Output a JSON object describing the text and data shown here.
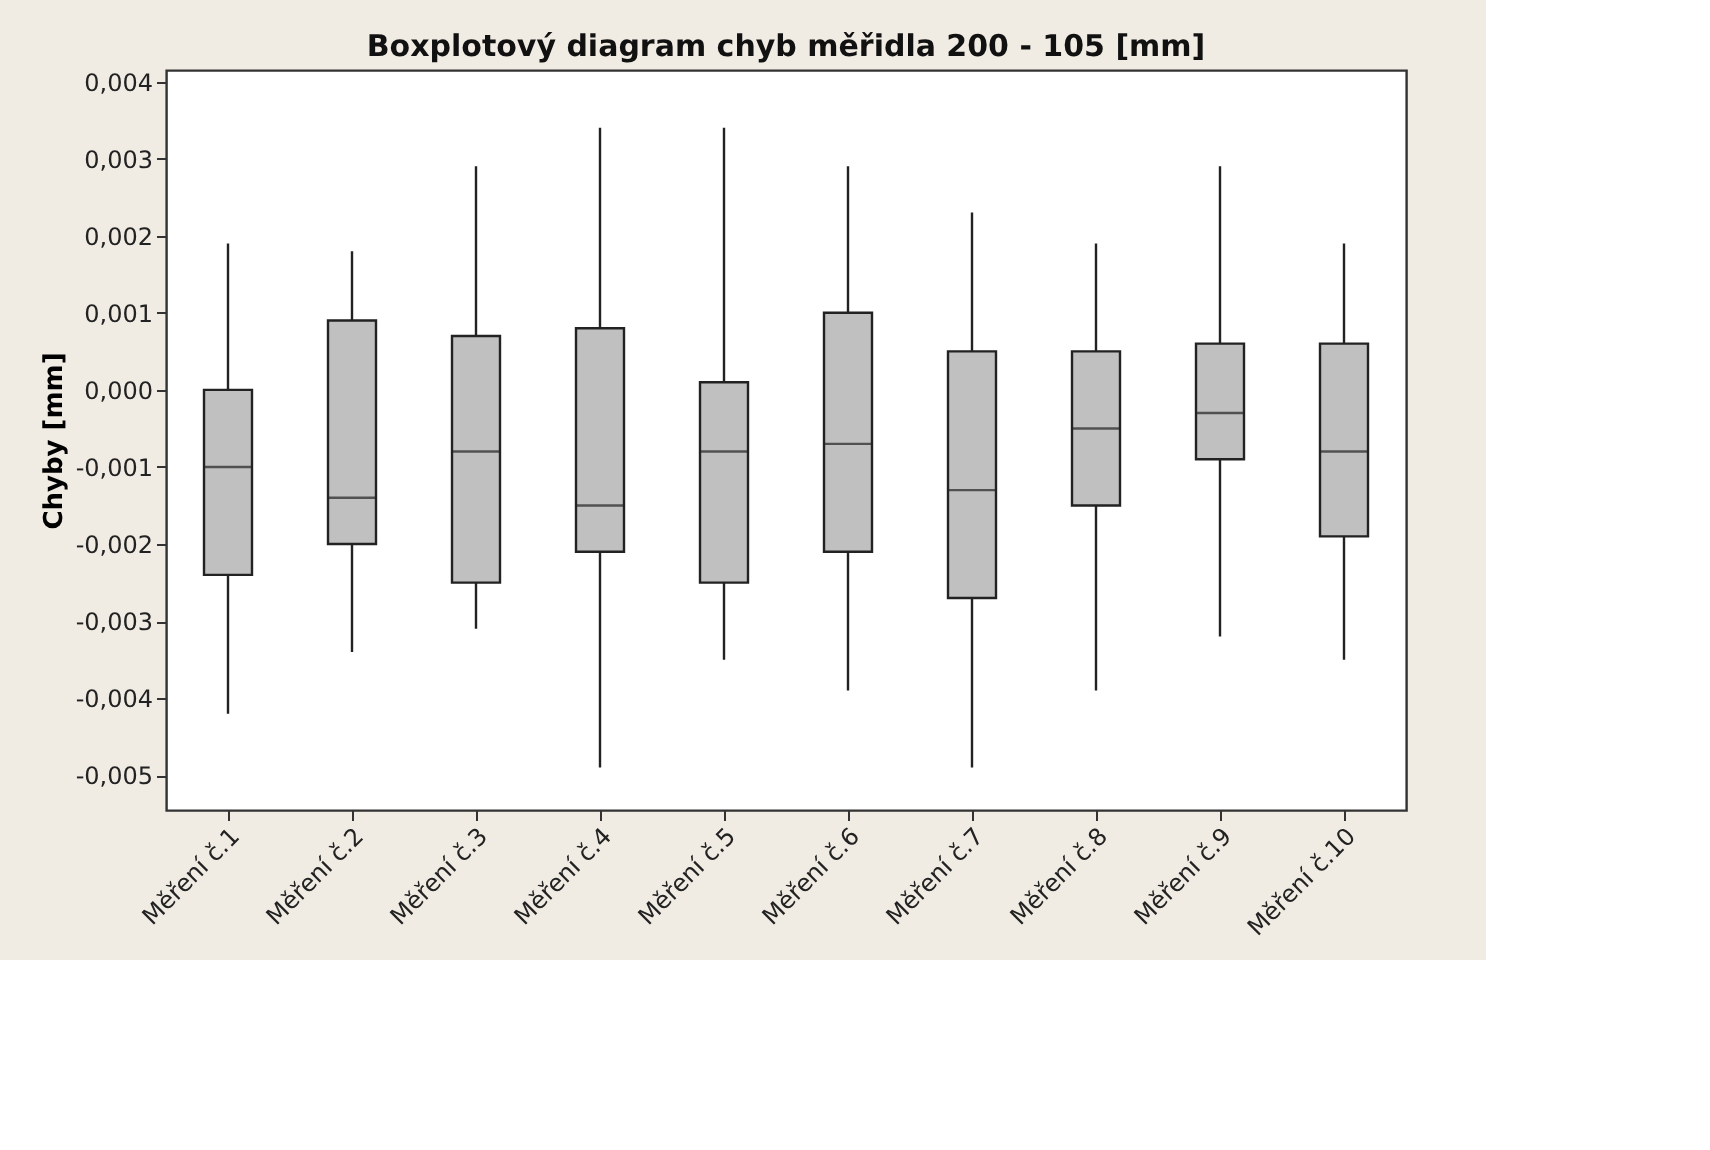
{
  "chart_data": {
    "type": "box",
    "title": "Boxplotový diagram chyb měřidla 200 - 105 [mm]",
    "ylabel": "Chyby [mm]",
    "categories": [
      "Měření č.1",
      "Měření č.2",
      "Měření č.3",
      "Měření č.4",
      "Měření č.5",
      "Měření č.6",
      "Měření č.7",
      "Měření č.8",
      "Měření č.9",
      "Měření č.10"
    ],
    "boxes": [
      {
        "low": -0.0042,
        "q1": -0.0024,
        "median": -0.001,
        "q3": 0.0,
        "high": 0.0019
      },
      {
        "low": -0.0034,
        "q1": -0.002,
        "median": -0.0014,
        "q3": 0.0009,
        "high": 0.0018
      },
      {
        "low": -0.0031,
        "q1": -0.0025,
        "median": -0.0008,
        "q3": 0.0007,
        "high": 0.0029
      },
      {
        "low": -0.0049,
        "q1": -0.0021,
        "median": -0.0015,
        "q3": 0.0008,
        "high": 0.0034
      },
      {
        "low": -0.0035,
        "q1": -0.0025,
        "median": -0.0008,
        "q3": 0.0001,
        "high": 0.0034
      },
      {
        "low": -0.0039,
        "q1": -0.0021,
        "median": -0.0007,
        "q3": 0.001,
        "high": 0.0029
      },
      {
        "low": -0.0049,
        "q1": -0.0027,
        "median": -0.0013,
        "q3": 0.0005,
        "high": 0.0023
      },
      {
        "low": -0.0039,
        "q1": -0.0015,
        "median": -0.0005,
        "q3": 0.0005,
        "high": 0.0019
      },
      {
        "low": -0.0032,
        "q1": -0.0009,
        "median": -0.0003,
        "q3": 0.0006,
        "high": 0.0029
      },
      {
        "low": -0.0035,
        "q1": -0.0019,
        "median": -0.0008,
        "q3": 0.0006,
        "high": 0.0019
      }
    ],
    "color": "#c0c0c0",
    "ylim": [
      -0.00545,
      0.00415
    ],
    "yticks": [
      {
        "value": -0.005,
        "label": "-0,005"
      },
      {
        "value": -0.004,
        "label": "-0,004"
      },
      {
        "value": -0.003,
        "label": "-0,003"
      },
      {
        "value": -0.002,
        "label": "-0,002"
      },
      {
        "value": -0.001,
        "label": "-0,001"
      },
      {
        "value": 0.0,
        "label": "0,000"
      },
      {
        "value": 0.001,
        "label": "0,001"
      },
      {
        "value": 0.002,
        "label": "0,002"
      },
      {
        "value": 0.003,
        "label": "0,003"
      },
      {
        "value": 0.004,
        "label": "0,004"
      }
    ],
    "grid": false
  }
}
